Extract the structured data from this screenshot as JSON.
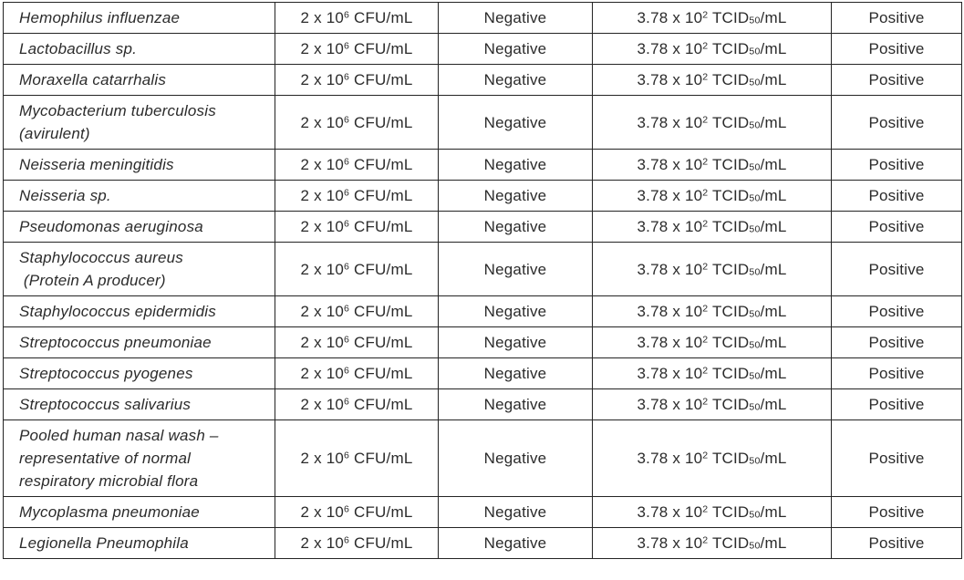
{
  "colors": {
    "background": "#ffffff",
    "border": "#242424",
    "text": "#2b2b2b"
  },
  "table": {
    "description": "Microbial interference / cross-reactivity results table (no header row visible in crop)",
    "rows": [
      {
        "organism": "Hemophilus influenzae",
        "bacteria_concentration": "2 x 10^{6} CFU/mL",
        "bacteria_result": "Negative",
        "virus_concentration": "3.78 x 10^{2} TCID_{50}/mL",
        "virus_result": "Positive"
      },
      {
        "organism": "Lactobacillus sp.",
        "bacteria_concentration": "2 x 10^{6} CFU/mL",
        "bacteria_result": "Negative",
        "virus_concentration": "3.78 x 10^{2} TCID_{50}/mL",
        "virus_result": "Positive"
      },
      {
        "organism": "Moraxella catarrhalis",
        "bacteria_concentration": "2 x 10^{6} CFU/mL",
        "bacteria_result": "Negative",
        "virus_concentration": "3.78 x 10^{2} TCID_{50}/mL",
        "virus_result": "Positive"
      },
      {
        "organism": "Mycobacterium tuberculosis\n(avirulent)",
        "bacteria_concentration": "2 x 10^{6} CFU/mL",
        "bacteria_result": "Negative",
        "virus_concentration": "3.78 x 10^{2} TCID_{50}/mL",
        "virus_result": "Positive"
      },
      {
        "organism": "Neisseria meningitidis",
        "bacteria_concentration": "2 x 10^{6} CFU/mL",
        "bacteria_result": "Negative",
        "virus_concentration": "3.78 x 10^{2} TCID_{50}/mL",
        "virus_result": "Positive"
      },
      {
        "organism": "Neisseria sp.",
        "bacteria_concentration": "2 x 10^{6} CFU/mL",
        "bacteria_result": "Negative",
        "virus_concentration": "3.78 x 10^{2} TCID_{50}/mL",
        "virus_result": "Positive"
      },
      {
        "organism": "Pseudomonas aeruginosa",
        "bacteria_concentration": "2 x 10^{6} CFU/mL",
        "bacteria_result": "Negative",
        "virus_concentration": "3.78 x 10^{2} TCID_{50}/mL",
        "virus_result": "Positive"
      },
      {
        "organism": "Staphylococcus aureus\n (Protein A producer)",
        "bacteria_concentration": "2 x 10^{6} CFU/mL",
        "bacteria_result": "Negative",
        "virus_concentration": "3.78 x 10^{2} TCID_{50}/mL",
        "virus_result": "Positive"
      },
      {
        "organism": "Staphylococcus epidermidis",
        "bacteria_concentration": "2 x 10^{6} CFU/mL",
        "bacteria_result": "Negative",
        "virus_concentration": "3.78 x 10^{2} TCID_{50}/mL",
        "virus_result": "Positive"
      },
      {
        "organism": "Streptococcus pneumoniae",
        "bacteria_concentration": "2 x 10^{6} CFU/mL",
        "bacteria_result": "Negative",
        "virus_concentration": "3.78 x 10^{2} TCID_{50}/mL",
        "virus_result": "Positive"
      },
      {
        "organism": "Streptococcus pyogenes",
        "bacteria_concentration": "2 x 10^{6} CFU/mL",
        "bacteria_result": "Negative",
        "virus_concentration": "3.78 x 10^{2} TCID_{50}/mL",
        "virus_result": "Positive"
      },
      {
        "organism": "Streptococcus salivarius",
        "bacteria_concentration": "2 x 10^{6} CFU/mL",
        "bacteria_result": "Negative",
        "virus_concentration": "3.78 x 10^{2} TCID_{50}/mL",
        "virus_result": "Positive"
      },
      {
        "organism": "Pooled human nasal wash –\nrepresentative of normal\nrespiratory microbial flora",
        "bacteria_concentration": "2 x 10^{6} CFU/mL",
        "bacteria_result": "Negative",
        "virus_concentration": "3.78 x 10^{2} TCID_{50}/mL",
        "virus_result": "Positive"
      },
      {
        "organism": "Mycoplasma pneumoniae",
        "bacteria_concentration": "2 x 10^{6} CFU/mL",
        "bacteria_result": "Negative",
        "virus_concentration": "3.78 x 10^{2} TCID_{50}/mL",
        "virus_result": "Positive"
      },
      {
        "organism": "Legionella Pneumophila",
        "bacteria_concentration": "2 x 10^{6} CFU/mL",
        "bacteria_result": "Negative",
        "virus_concentration": "3.78 x 10^{2} TCID_{50}/mL",
        "virus_result": "Positive"
      }
    ]
  }
}
